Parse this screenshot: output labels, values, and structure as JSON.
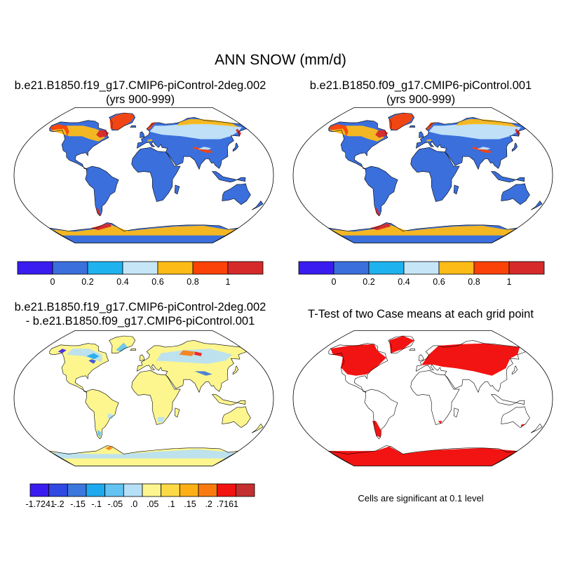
{
  "title": "ANN SNOW (mm/d)",
  "panels": [
    {
      "title_line1": "b.e21.B1850.f19_g17.CMIP6-piControl-2deg.002",
      "title_line2": "(yrs 900-999)"
    },
    {
      "title_line1": "b.e21.B1850.f09_g17.CMIP6-piControl.001",
      "title_line2": "(yrs 900-999)"
    },
    {
      "title_line1": "b.e21.B1850.f19_g17.CMIP6-piControl-2deg.002",
      "title_line2": "- b.e21.B1850.f09_g17.CMIP6-piControl.001"
    },
    {
      "title_line1": "T-Test of two Case means at each grid point",
      "title_line2": ""
    }
  ],
  "colorbar_abs": {
    "colors": [
      "#3a1cf0",
      "#3a6fdc",
      "#1eb2ee",
      "#c6e6f8",
      "#fdbb18",
      "#fb4208",
      "#d62a2a"
    ],
    "tick_labels": [
      "0",
      "0.2",
      "0.4",
      "0.6",
      "0.8",
      "1"
    ]
  },
  "colorbar_diff": {
    "colors": [
      "#3a1cf0",
      "#2f49e2",
      "#3b77dc",
      "#1eaaee",
      "#63c3f2",
      "#b6e0f8",
      "#fdf68e",
      "#fdda45",
      "#fcb016",
      "#fb7a10",
      "#f21412",
      "#c42f2f"
    ],
    "tick_labels": [
      "-1.7241",
      "-.2",
      "-.15",
      "-.1",
      "-.05",
      ".0",
      ".05",
      ".1",
      ".15",
      ".2",
      ".7161"
    ]
  },
  "significance_note": "Cells are significant at 0.1 level",
  "map_colors": {
    "ocean": "#ffffff",
    "land_low_snow": "#3a6fdc",
    "diff_land": "#fdf68e",
    "ttest_significant": "#f21412",
    "coastline": "#000000"
  }
}
